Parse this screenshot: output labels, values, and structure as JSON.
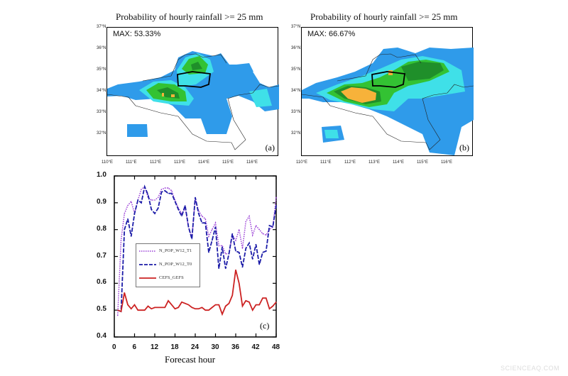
{
  "maps": [
    {
      "title": "Probability of hourly rainfall >= 25 mm",
      "max_label": "MAX: 53.33%",
      "panel": "(a)"
    },
    {
      "title": "Probability of hourly rainfall >= 25 mm",
      "max_label": "MAX: 66.67%",
      "panel": "(b)"
    }
  ],
  "map_axes": {
    "lat_ticks": [
      "37°N",
      "36°N",
      "35°N",
      "34°N",
      "33°N",
      "32°N"
    ],
    "lon_ticks": [
      "110°E",
      "111°E",
      "112°E",
      "113°E",
      "114°E",
      "115°E",
      "116°E"
    ]
  },
  "colors": {
    "blue": "#2f9bea",
    "cyan": "#3fe0e8",
    "green": "#33c233",
    "dark_green": "#1f8f2a",
    "orange": "#f7b23a",
    "t1": "#9a3fd6",
    "t0": "#1c1ca8",
    "cefs": "#cc2222"
  },
  "chart_data": {
    "type": "line",
    "panel": "(c)",
    "xlabel": "Forecast hour",
    "ylabel": "",
    "xlim": [
      0,
      48
    ],
    "ylim": [
      0.4,
      1.0
    ],
    "xticks": [
      "0",
      "6",
      "12",
      "18",
      "24",
      "30",
      "36",
      "42",
      "48"
    ],
    "yticks": [
      "0.4",
      "0.5",
      "0.6",
      "0.7",
      "0.8",
      "0.9",
      "1.0"
    ],
    "legend_position": "center-left",
    "x": [
      1,
      2,
      3,
      4,
      5,
      6,
      7,
      8,
      9,
      10,
      11,
      12,
      13,
      14,
      15,
      16,
      17,
      18,
      19,
      20,
      21,
      22,
      23,
      24,
      25,
      26,
      27,
      28,
      29,
      30,
      31,
      32,
      33,
      34,
      35,
      36,
      37,
      38,
      39,
      40,
      41,
      42,
      43,
      44,
      45,
      46,
      47,
      48
    ],
    "series": [
      {
        "name": "N_POP_W12_T1",
        "style": "dotted",
        "color": "#9a3fd6",
        "values": [
          0.48,
          0.76,
          0.86,
          0.89,
          0.905,
          0.86,
          0.91,
          0.95,
          0.96,
          0.92,
          0.91,
          0.91,
          0.92,
          0.95,
          0.955,
          0.955,
          0.945,
          0.91,
          0.88,
          0.86,
          0.88,
          0.81,
          0.77,
          0.915,
          0.87,
          0.85,
          0.84,
          0.775,
          0.8,
          0.825,
          0.74,
          0.74,
          0.71,
          0.71,
          0.78,
          0.76,
          0.8,
          0.73,
          0.83,
          0.85,
          0.78,
          0.815,
          0.8,
          0.785,
          0.78,
          0.8,
          0.81,
          0.92
        ]
      },
      {
        "name": "N_POP_W12_T0",
        "style": "dashed",
        "color": "#1c1ca8",
        "values": [
          0.5,
          0.495,
          0.8,
          0.84,
          0.775,
          0.86,
          0.91,
          0.9,
          0.96,
          0.93,
          0.875,
          0.86,
          0.88,
          0.94,
          0.945,
          0.935,
          0.935,
          0.905,
          0.875,
          0.85,
          0.89,
          0.81,
          0.765,
          0.92,
          0.86,
          0.825,
          0.825,
          0.715,
          0.76,
          0.81,
          0.655,
          0.735,
          0.655,
          0.71,
          0.785,
          0.72,
          0.715,
          0.66,
          0.73,
          0.75,
          0.69,
          0.745,
          0.67,
          0.715,
          0.72,
          0.815,
          0.81,
          0.89
        ]
      },
      {
        "name": "CEFS_GEFS",
        "style": "solid",
        "color": "#cc2222",
        "values": [
          0.5,
          0.495,
          0.565,
          0.52,
          0.505,
          0.52,
          0.5,
          0.5,
          0.5,
          0.515,
          0.505,
          0.51,
          0.51,
          0.51,
          0.51,
          0.535,
          0.52,
          0.505,
          0.51,
          0.53,
          0.525,
          0.52,
          0.51,
          0.505,
          0.505,
          0.51,
          0.5,
          0.5,
          0.51,
          0.52,
          0.52,
          0.485,
          0.515,
          0.525,
          0.555,
          0.65,
          0.6,
          0.515,
          0.535,
          0.53,
          0.5,
          0.52,
          0.52,
          0.545,
          0.545,
          0.505,
          0.515,
          0.53
        ]
      }
    ]
  },
  "watermark": "SCIENCEAQ.COM"
}
